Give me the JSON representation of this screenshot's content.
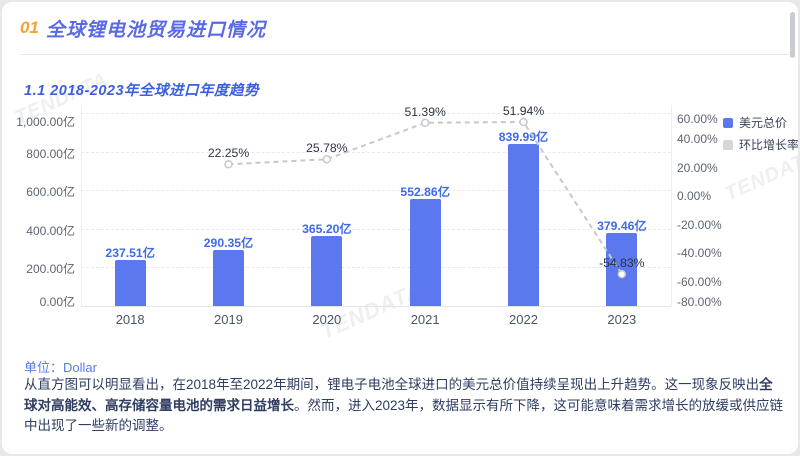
{
  "header": {
    "number": "01",
    "title": "全球锂电池贸易进口情况"
  },
  "section": {
    "title": "1.1 2018-2023年全球进口年度趋势"
  },
  "chart_data": {
    "type": "bar",
    "subtype": "bar+line dual-axis combo",
    "title": "",
    "categories": [
      "2018",
      "2019",
      "2020",
      "2021",
      "2022",
      "2023"
    ],
    "series": [
      {
        "name": "美元总价",
        "type": "bar",
        "axis": "left",
        "unit": "亿",
        "values": [
          237.51,
          290.35,
          365.2,
          552.86,
          839.99,
          379.46
        ],
        "labels": [
          "237.51亿",
          "290.35亿",
          "365.20亿",
          "552.86亿",
          "839.99亿",
          "379.46亿"
        ]
      },
      {
        "name": "环比增长率",
        "type": "line",
        "axis": "right",
        "unit": "%",
        "values": [
          null,
          22.25,
          25.78,
          51.39,
          51.94,
          -54.83
        ],
        "labels": [
          null,
          "22.25%",
          "25.78%",
          "51.39%",
          "51.94%",
          "-54.83%"
        ]
      }
    ],
    "left_axis": {
      "min": 0,
      "max": 1000,
      "step": 200,
      "tick_labels": [
        "0.00亿",
        "200.00亿",
        "400.00亿",
        "600.00亿",
        "800.00亿",
        "1,000.00亿"
      ]
    },
    "right_axis": {
      "min": -80,
      "max": 60,
      "step": 20,
      "tick_labels": [
        "-80.00%",
        "-60.00%",
        "-40.00%",
        "-20.00%",
        "0.00%",
        "20.00%",
        "40.00%",
        "60.00%"
      ]
    },
    "legend": [
      {
        "label": "美元总价",
        "color": "#5b78ee"
      },
      {
        "label": "环比增长率",
        "color": "#d4d6da"
      }
    ],
    "legend_position": "top-right",
    "grid": true,
    "line_style": "dashed-gray-with-hollow-markers"
  },
  "footer": {
    "unit_label": "单位：Dollar",
    "paragraph": {
      "part1": "从直方图可以明显看出，在2018年至2022年期间，锂电子电池全球进口的美元总价值持续呈现出上升趋势。这一现象反映出",
      "bold": "全球对高能效、高存储容量电池的需求日益增长",
      "part2": "。然而，进入2023年，数据显示有所下降，这可能意味着需求增长的放缓或供应链中出现了一些新的调整。"
    }
  },
  "watermark": {
    "text": "TENDATA"
  },
  "colors": {
    "bar": "#5b78ee",
    "bar_label": "#3e6ae8",
    "line": "#c6c8cc",
    "marker_fill": "#ffffff",
    "accent_orange": "#f6a233",
    "title_blue": "#5a6ae6",
    "subtitle_blue": "#3b5fe0",
    "unit_blue": "#5b79ea"
  }
}
